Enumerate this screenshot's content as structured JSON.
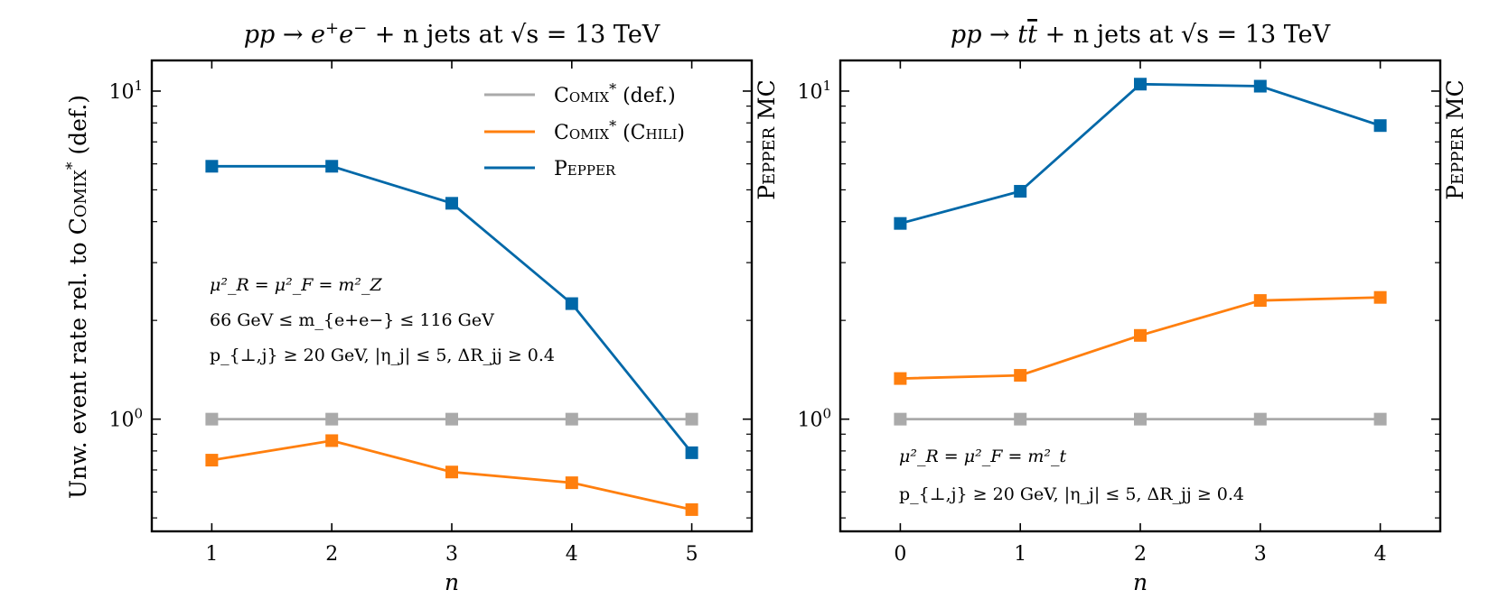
{
  "chart_data": [
    {
      "type": "line",
      "title": {
        "pre": "pp → e",
        "sup1": "+",
        "mid": "e",
        "sup2": "−",
        "post": " + n jets at √s = 13 TeV"
      },
      "xlabel": "n",
      "ylabel": {
        "pre": "Unw. event rate rel. to ",
        "sc": "Comix",
        "sup": "*",
        "post": " (def.)"
      },
      "right_label": "Pepper MC",
      "yscale": "log",
      "xlim": [
        0.5,
        5.5
      ],
      "ylim": [
        0.455,
        12.4
      ],
      "x": [
        1,
        2,
        3,
        4,
        5
      ],
      "x_ticks": [
        "1",
        "2",
        "3",
        "4",
        "5"
      ],
      "y_ticks": [
        {
          "value": 1,
          "base": "10",
          "exp": "0"
        },
        {
          "value": 10,
          "base": "10",
          "exp": "1"
        }
      ],
      "grid": false,
      "legend_position": "top-right",
      "series": [
        {
          "name": "Comix* (def.)",
          "color": "#aaaaaa",
          "values": [
            1.0,
            1.0,
            1.0,
            1.0,
            1.0
          ]
        },
        {
          "name": "Comix* (Chili)",
          "color": "#ff7f0e",
          "values": [
            0.75,
            0.86,
            0.69,
            0.64,
            0.53
          ]
        },
        {
          "name": "Pepper",
          "color": "#0068a8",
          "values": [
            5.9,
            5.9,
            4.55,
            2.25,
            0.79
          ]
        }
      ],
      "legend": [
        {
          "sc": "Comix",
          "sup": "*",
          "post": " (def.)"
        },
        {
          "sc": "Comix",
          "sup": "*",
          "post": " (",
          "sc2": "Chili",
          "post2": ")"
        },
        {
          "sc": "Pepper",
          "sup": "",
          "post": ""
        }
      ],
      "annotations": [
        "μ²_R = μ²_F = m²_Z",
        "66 GeV ≤ m_{e+e−} ≤ 116 GeV",
        "p_{⊥,j} ≥ 20 GeV, |η_j| ≤ 5, ΔR_jj ≥ 0.4"
      ]
    },
    {
      "type": "line",
      "title": {
        "pre": "pp → t",
        "tbar": "t",
        "post": " + n jets at √s = 13 TeV"
      },
      "xlabel": "n",
      "right_label": "Pepper MC",
      "yscale": "log",
      "xlim": [
        -0.5,
        4.5
      ],
      "ylim": [
        0.455,
        12.4
      ],
      "x": [
        0,
        1,
        2,
        3,
        4
      ],
      "x_ticks": [
        "0",
        "1",
        "2",
        "3",
        "4"
      ],
      "y_ticks": [
        {
          "value": 1,
          "base": "10",
          "exp": "0"
        },
        {
          "value": 10,
          "base": "10",
          "exp": "1"
        }
      ],
      "grid": false,
      "series": [
        {
          "name": "Comix* (def.)",
          "color": "#aaaaaa",
          "values": [
            1.0,
            1.0,
            1.0,
            1.0,
            1.0
          ]
        },
        {
          "name": "Comix* (Chili)",
          "color": "#ff7f0e",
          "values": [
            1.33,
            1.36,
            1.8,
            2.3,
            2.35
          ]
        },
        {
          "name": "Pepper",
          "color": "#0068a8",
          "values": [
            3.95,
            4.95,
            10.5,
            10.35,
            7.85
          ]
        }
      ],
      "annotations": [
        "μ²_R = μ²_F = m²_t",
        "p_{⊥,j} ≥ 20 GeV, |η_j| ≤ 5, ΔR_jj ≥ 0.4"
      ]
    }
  ]
}
